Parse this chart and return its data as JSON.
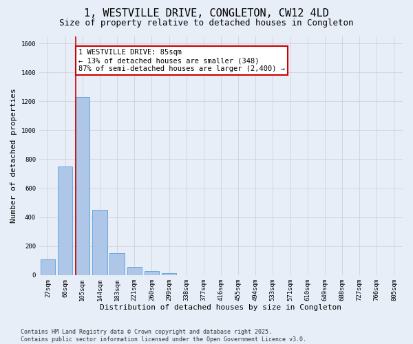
{
  "title": "1, WESTVILLE DRIVE, CONGLETON, CW12 4LD",
  "subtitle": "Size of property relative to detached houses in Congleton",
  "xlabel": "Distribution of detached houses by size in Congleton",
  "ylabel": "Number of detached properties",
  "categories": [
    "27sqm",
    "66sqm",
    "105sqm",
    "144sqm",
    "183sqm",
    "221sqm",
    "260sqm",
    "299sqm",
    "338sqm",
    "377sqm",
    "416sqm",
    "455sqm",
    "494sqm",
    "533sqm",
    "571sqm",
    "610sqm",
    "649sqm",
    "688sqm",
    "727sqm",
    "766sqm",
    "805sqm"
  ],
  "values": [
    110,
    750,
    1230,
    450,
    150,
    55,
    30,
    15,
    0,
    0,
    0,
    0,
    0,
    0,
    0,
    0,
    0,
    0,
    0,
    0,
    0
  ],
  "bar_color": "#aec6e8",
  "bar_edge_color": "#5a9fd4",
  "vline_x": 1.62,
  "vline_color": "#cc0000",
  "annotation_text": "1 WESTVILLE DRIVE: 85sqm\n← 13% of detached houses are smaller (348)\n87% of semi-detached houses are larger (2,400) →",
  "annotation_box_color": "#ffffff",
  "annotation_box_edge": "#cc0000",
  "ylim": [
    0,
    1650
  ],
  "yticks": [
    0,
    200,
    400,
    600,
    800,
    1000,
    1200,
    1400,
    1600
  ],
  "grid_color": "#cccccc",
  "bg_color": "#e8eef8",
  "plot_bg_color": "#e8eef8",
  "footer_line1": "Contains HM Land Registry data © Crown copyright and database right 2025.",
  "footer_line2": "Contains public sector information licensed under the Open Government Licence v3.0.",
  "title_fontsize": 11,
  "subtitle_fontsize": 9,
  "tick_fontsize": 6.5,
  "ylabel_fontsize": 8,
  "xlabel_fontsize": 8,
  "annotation_fontsize": 7.5,
  "footer_fontsize": 6
}
